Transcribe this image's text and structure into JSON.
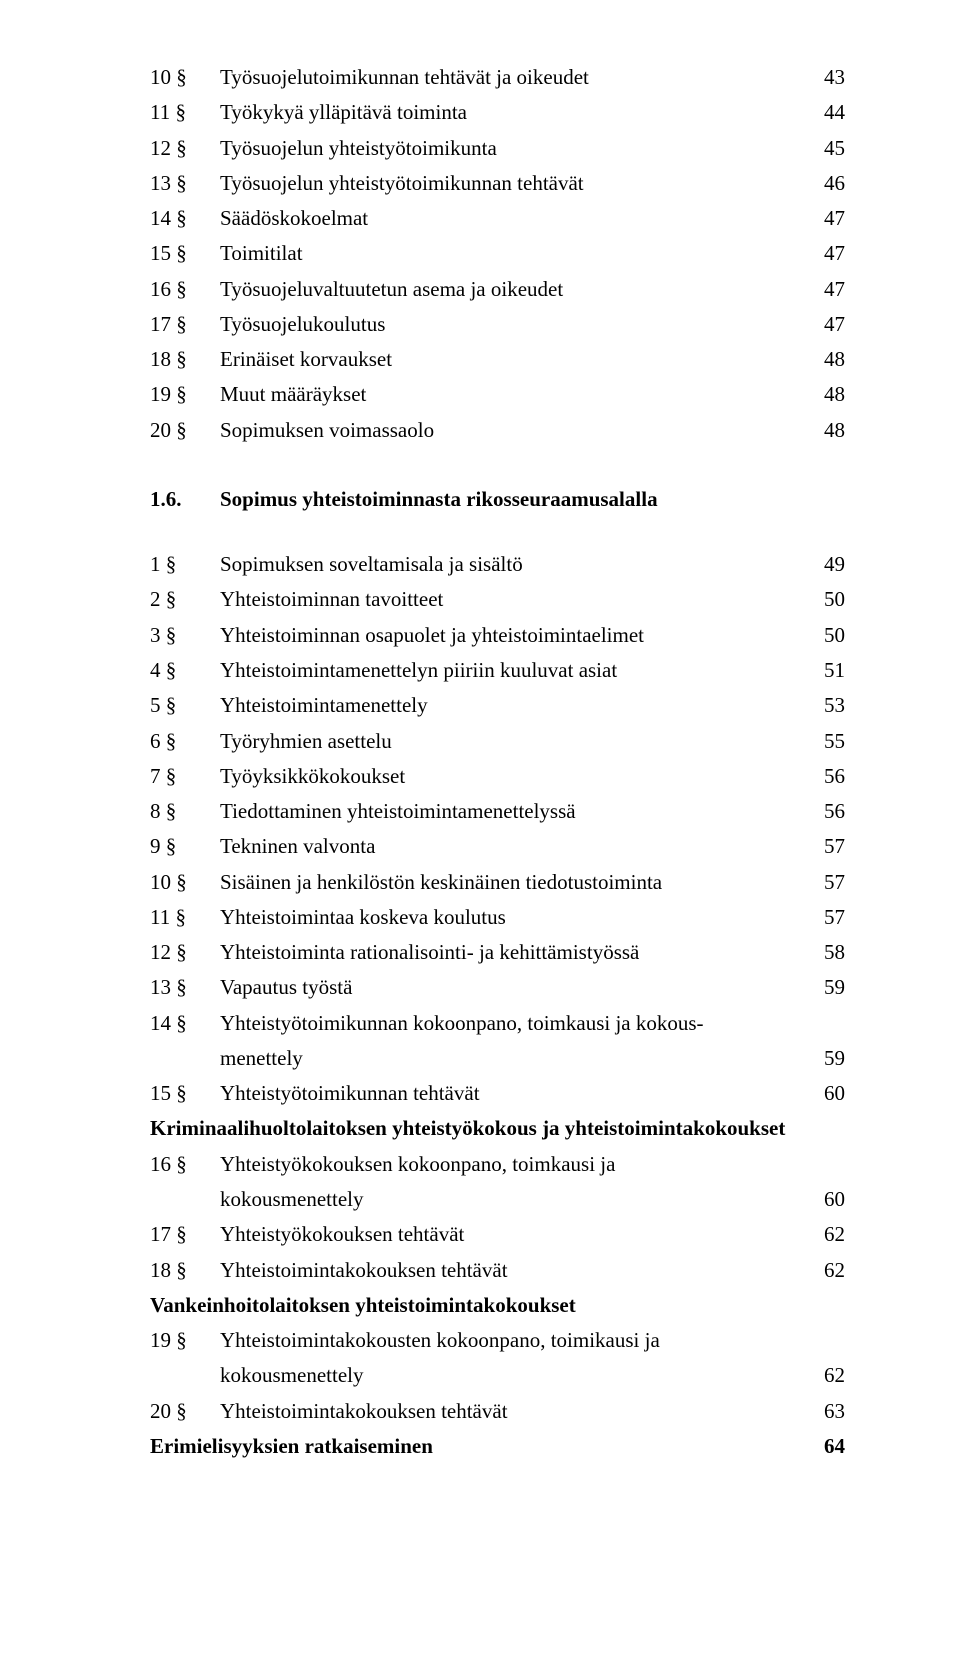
{
  "first_block": [
    {
      "num": "10 §",
      "label": "Työsuojelutoimikunnan tehtävät ja oikeudet",
      "page": "43"
    },
    {
      "num": "11 §",
      "label": "Työkykyä ylläpitävä toiminta",
      "page": "44"
    },
    {
      "num": "12 §",
      "label": "Työsuojelun yhteistyötoimikunta",
      "page": "45"
    },
    {
      "num": "13 §",
      "label": "Työsuojelun yhteistyötoimikunnan tehtävät",
      "page": "46"
    },
    {
      "num": "14 §",
      "label": "Säädöskokoelmat",
      "page": "47"
    },
    {
      "num": "15 §",
      "label": "Toimitilat",
      "page": "47"
    },
    {
      "num": "16 §",
      "label": "Työsuojeluvaltuutetun asema ja oikeudet",
      "page": "47"
    },
    {
      "num": "17 §",
      "label": "Työsuojelukoulutus",
      "page": "47"
    },
    {
      "num": "18 §",
      "label": "Erinäiset korvaukset",
      "page": "48"
    },
    {
      "num": "19 §",
      "label": "Muut määräykset",
      "page": "48"
    },
    {
      "num": "20 §",
      "label": "Sopimuksen voimassaolo",
      "page": "48"
    }
  ],
  "section": {
    "num": "1.6.",
    "label": "Sopimus yhteistoiminnasta rikosseuraamusalalla"
  },
  "second_block": [
    {
      "num": "1 §",
      "label": "Sopimuksen soveltamisala ja sisältö",
      "page": "49"
    },
    {
      "num": "2 §",
      "label": "Yhteistoiminnan tavoitteet",
      "page": "50"
    },
    {
      "num": "3 §",
      "label": "Yhteistoiminnan osapuolet ja yhteistoimintaelimet",
      "page": "50"
    },
    {
      "num": "4 §",
      "label": "Yhteistoimintamenettelyn piiriin kuuluvat asiat",
      "page": "51"
    },
    {
      "num": "5 §",
      "label": "Yhteistoimintamenettely",
      "page": "53"
    },
    {
      "num": "6 §",
      "label": "Työryhmien asettelu",
      "page": "55"
    },
    {
      "num": "7 §",
      "label": "Työyksikkökokoukset",
      "page": "56"
    },
    {
      "num": "8 §",
      "label": "Tiedottaminen yhteistoimintamenettelyssä",
      "page": "56"
    },
    {
      "num": "9 §",
      "label": "Tekninen valvonta",
      "page": "57"
    },
    {
      "num": "10 §",
      "label": "Sisäinen ja henkilöstön keskinäinen tiedotustoiminta",
      "page": "57"
    },
    {
      "num": "11 §",
      "label": "Yhteistoimintaa koskeva koulutus",
      "page": "57"
    },
    {
      "num": "12 §",
      "label": "Yhteistoiminta rationalisointi- ja kehittämistyössä",
      "page": "58"
    },
    {
      "num": "13 §",
      "label": "Vapautus työstä",
      "page": "59"
    }
  ],
  "item14": {
    "num": "14 §",
    "label1": "Yhteistyötoimikunnan kokoonpano, toimkausi ja kokous-",
    "label2": "menettely",
    "page": "59"
  },
  "item15": {
    "num": "15 §",
    "label": "Yhteistyötoimikunnan tehtävät",
    "page": "60"
  },
  "subhead1": "Kriminaalihuoltolaitoksen yhteistyökokous ja yhteistoimintakokoukset",
  "item16": {
    "num": "16 §",
    "label1": "Yhteistyökokouksen kokoonpano, toimkausi ja",
    "label2": "kokousmenettely",
    "page": "60"
  },
  "third_block": [
    {
      "num": "17 §",
      "label": "Yhteistyökokouksen tehtävät",
      "page": "62"
    },
    {
      "num": "18 §",
      "label": "Yhteistoimintakokouksen tehtävät",
      "page": "62"
    }
  ],
  "subhead2": "Vankeinhoitolaitoksen yhteistoimintakokoukset",
  "item19": {
    "num": "19 §",
    "label1": "Yhteistoimintakokousten kokoonpano, toimikausi ja",
    "label2": "kokousmenettely",
    "page": "62"
  },
  "item20": {
    "num": "20 §",
    "label": "Yhteistoimintakokouksen tehtävät",
    "page": "63"
  },
  "subhead3": {
    "label": "Erimielisyyksien ratkaiseminen",
    "page": "64"
  }
}
